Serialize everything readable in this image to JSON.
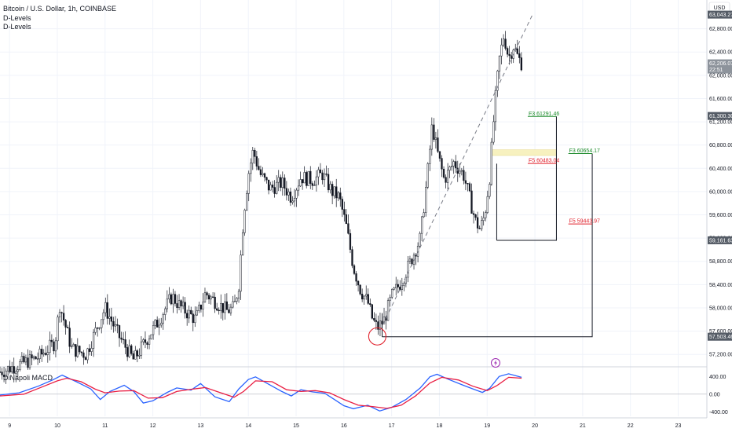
{
  "header": {
    "symbol": "Bitcoin / U.S. Dollar, 1h, COINBASE",
    "indicators": [
      "D-Levels",
      "D-Levels"
    ],
    "macd_label": "DiNapoli MACD"
  },
  "price_axis": {
    "currency": "USD",
    "ticks": [
      "62,800.00",
      "62,400.00",
      "62,000.00",
      "61,600.00",
      "61,200.00",
      "60,800.00",
      "60,400.00",
      "60,000.00",
      "59,600.00",
      "59,200.00",
      "58,800.00",
      "58,400.00",
      "58,000.00",
      "57,600.00",
      "57,200.00"
    ],
    "tags": [
      {
        "label": "63,043.27",
        "value": 63043.27
      },
      {
        "label": "62,206.07",
        "sub": "22:51",
        "value": 62206.07
      },
      {
        "label": "61,300.30",
        "value": 61300.3
      },
      {
        "label": "59,161.63",
        "value": 59161.63
      },
      {
        "label": "57,503.46",
        "value": 57503.46
      }
    ]
  },
  "macd_axis": {
    "ticks": [
      "400.00",
      "0.00",
      "-400.00"
    ]
  },
  "time_axis": {
    "ticks": [
      "9",
      "10",
      "11",
      "12",
      "13",
      "14",
      "15",
      "16",
      "17",
      "18",
      "19",
      "20",
      "21",
      "22",
      "23"
    ]
  },
  "colors": {
    "candle": "#131722",
    "macd_line": "#2962ff",
    "signal_line": "#e91e43",
    "fib_green": "#1b8a2a",
    "fib_red": "#e0202b",
    "box": "#131722",
    "highlight": "#f7f1bf",
    "circle": "#e0202b",
    "tag_bg": "#555c66",
    "tag_dark": "#131722",
    "lightning": "#9c27b0"
  },
  "fib_levels": [
    {
      "label": "F3 61291.46",
      "price": 61291.46,
      "color": "green"
    },
    {
      "label": "F3 60654.17",
      "price": 60654.17,
      "color": "green"
    },
    {
      "label": "F5 60483.04",
      "price": 60483.04,
      "color": "red"
    },
    {
      "label": "F5 59443.97",
      "price": 59443.97,
      "color": "red"
    }
  ],
  "chart_data": {
    "type": "candlestick",
    "title": "Bitcoin / U.S. Dollar, 1h, COINBASE",
    "x_unit": "day of month",
    "ylim": [
      57000,
      63200
    ],
    "xlim": [
      8.8,
      23.6
    ],
    "close_path": [
      [
        8.8,
        56900
      ],
      [
        9.6,
        57150
      ],
      [
        9.95,
        57400
      ],
      [
        10.05,
        58050
      ],
      [
        10.3,
        57300
      ],
      [
        10.6,
        57200
      ],
      [
        10.85,
        57700
      ],
      [
        11.0,
        58000
      ],
      [
        11.3,
        57500
      ],
      [
        11.6,
        57100
      ],
      [
        11.9,
        57500
      ],
      [
        12.1,
        57750
      ],
      [
        12.4,
        58200
      ],
      [
        12.6,
        58000
      ],
      [
        12.9,
        57800
      ],
      [
        13.1,
        58250
      ],
      [
        13.4,
        58050
      ],
      [
        13.55,
        57950
      ],
      [
        13.7,
        58000
      ],
      [
        13.8,
        58400
      ],
      [
        13.9,
        59600
      ],
      [
        14.0,
        60300
      ],
      [
        14.1,
        60700
      ],
      [
        14.25,
        60300
      ],
      [
        14.45,
        60050
      ],
      [
        14.7,
        60150
      ],
      [
        14.9,
        59900
      ],
      [
        15.1,
        60250
      ],
      [
        15.35,
        60200
      ],
      [
        15.55,
        60300
      ],
      [
        15.75,
        60000
      ],
      [
        15.9,
        59900
      ],
      [
        16.05,
        59400
      ],
      [
        16.2,
        58700
      ],
      [
        16.35,
        58300
      ],
      [
        16.5,
        58100
      ],
      [
        16.6,
        57800
      ],
      [
        16.7,
        57650
      ],
      [
        16.85,
        57800
      ],
      [
        17.0,
        58200
      ],
      [
        17.2,
        58450
      ],
      [
        17.4,
        58800
      ],
      [
        17.6,
        59200
      ],
      [
        17.75,
        60300
      ],
      [
        17.85,
        61150
      ],
      [
        17.95,
        60700
      ],
      [
        18.1,
        60200
      ],
      [
        18.3,
        60500
      ],
      [
        18.5,
        60300
      ],
      [
        18.6,
        60000
      ],
      [
        18.75,
        59500
      ],
      [
        18.85,
        59350
      ],
      [
        18.95,
        59600
      ],
      [
        19.05,
        60250
      ],
      [
        19.15,
        61400
      ],
      [
        19.25,
        62250
      ],
      [
        19.35,
        62700
      ],
      [
        19.45,
        62300
      ],
      [
        19.55,
        62500
      ],
      [
        19.65,
        62300
      ],
      [
        19.72,
        62210
      ]
    ],
    "boxes": [
      {
        "from": [
          19.2,
          61291.46
        ],
        "to": [
          20.45,
          59161.63
        ]
      },
      {
        "from": [
          16.8,
          57503.46
        ],
        "to": [
          21.2,
          60654.17
        ]
      }
    ],
    "trend_line": [
      [
        16.75,
        57600
      ],
      [
        19.95,
        63043.27
      ]
    ],
    "highlight": {
      "x": [
        19.1,
        20.45
      ],
      "y": [
        60620,
        60720
      ]
    },
    "circle": {
      "x": 16.7,
      "y": 57510
    },
    "macd": {
      "ylim": [
        -500,
        600
      ],
      "macd": [
        [
          8.8,
          -20
        ],
        [
          9.2,
          30
        ],
        [
          9.6,
          180
        ],
        [
          9.9,
          320
        ],
        [
          10.1,
          430
        ],
        [
          10.4,
          280
        ],
        [
          10.7,
          120
        ],
        [
          10.9,
          -120
        ],
        [
          11.1,
          60
        ],
        [
          11.4,
          200
        ],
        [
          11.6,
          60
        ],
        [
          11.8,
          -200
        ],
        [
          12.0,
          -150
        ],
        [
          12.3,
          40
        ],
        [
          12.5,
          140
        ],
        [
          12.8,
          90
        ],
        [
          13.0,
          240
        ],
        [
          13.3,
          -60
        ],
        [
          13.6,
          -170
        ],
        [
          13.8,
          120
        ],
        [
          14.0,
          330
        ],
        [
          14.15,
          390
        ],
        [
          14.4,
          240
        ],
        [
          14.7,
          60
        ],
        [
          14.9,
          -40
        ],
        [
          15.1,
          100
        ],
        [
          15.35,
          50
        ],
        [
          15.6,
          20
        ],
        [
          15.8,
          -120
        ],
        [
          16.0,
          -260
        ],
        [
          16.2,
          -330
        ],
        [
          16.5,
          -250
        ],
        [
          16.75,
          -380
        ],
        [
          17.0,
          -300
        ],
        [
          17.3,
          -120
        ],
        [
          17.6,
          140
        ],
        [
          17.8,
          390
        ],
        [
          17.95,
          450
        ],
        [
          18.2,
          330
        ],
        [
          18.5,
          200
        ],
        [
          18.7,
          120
        ],
        [
          18.9,
          40
        ],
        [
          19.05,
          130
        ],
        [
          19.25,
          400
        ],
        [
          19.45,
          460
        ],
        [
          19.72,
          380
        ]
      ],
      "signal": [
        [
          8.8,
          -40
        ],
        [
          9.3,
          0
        ],
        [
          9.7,
          170
        ],
        [
          10.0,
          300
        ],
        [
          10.2,
          360
        ],
        [
          10.5,
          280
        ],
        [
          10.8,
          110
        ],
        [
          11.0,
          30
        ],
        [
          11.3,
          70
        ],
        [
          11.6,
          80
        ],
        [
          11.9,
          -90
        ],
        [
          12.2,
          -80
        ],
        [
          12.5,
          60
        ],
        [
          12.8,
          110
        ],
        [
          13.1,
          150
        ],
        [
          13.4,
          40
        ],
        [
          13.7,
          -70
        ],
        [
          13.9,
          60
        ],
        [
          14.15,
          300
        ],
        [
          14.5,
          280
        ],
        [
          14.8,
          100
        ],
        [
          15.1,
          60
        ],
        [
          15.4,
          80
        ],
        [
          15.7,
          30
        ],
        [
          16.0,
          -120
        ],
        [
          16.3,
          -250
        ],
        [
          16.6,
          -280
        ],
        [
          16.9,
          -320
        ],
        [
          17.2,
          -250
        ],
        [
          17.5,
          -40
        ],
        [
          17.8,
          250
        ],
        [
          18.05,
          380
        ],
        [
          18.4,
          320
        ],
        [
          18.7,
          180
        ],
        [
          19.0,
          80
        ],
        [
          19.2,
          190
        ],
        [
          19.45,
          380
        ],
        [
          19.72,
          360
        ]
      ]
    }
  }
}
